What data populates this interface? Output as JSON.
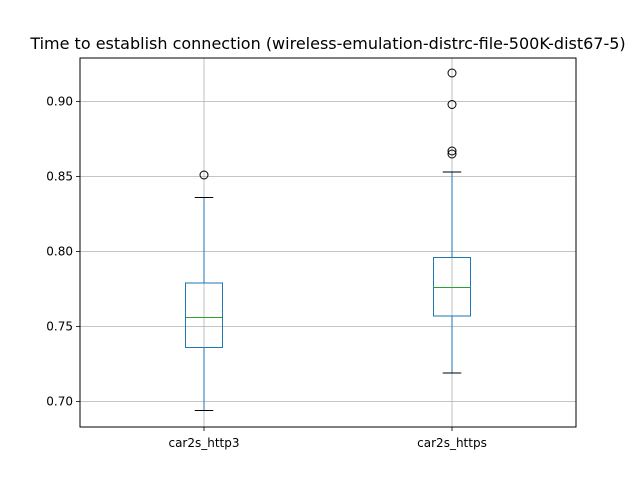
{
  "chart_data": {
    "type": "box",
    "title": "Time to establish connection (wireless-emulation-distrc-file-500K-dist67-5)",
    "xlabel": "",
    "ylabel": "",
    "categories": [
      "car2s_http3",
      "car2s_https"
    ],
    "ylim": [
      0.683,
      0.929
    ],
    "yticks": [
      0.7,
      0.75,
      0.8,
      0.85,
      0.9
    ],
    "ytick_labels": [
      "0.70",
      "0.75",
      "0.80",
      "0.85",
      "0.90"
    ],
    "grid": true,
    "legend": "none",
    "boxes": [
      {
        "category": "car2s_http3",
        "whisker_low": 0.694,
        "q1": 0.736,
        "median": 0.756,
        "q3": 0.779,
        "whisker_high": 0.836,
        "outliers": [
          0.851
        ]
      },
      {
        "category": "car2s_https",
        "whisker_low": 0.719,
        "q1": 0.757,
        "median": 0.776,
        "q3": 0.796,
        "whisker_high": 0.853,
        "outliers": [
          0.865,
          0.867,
          0.898,
          0.919
        ]
      }
    ],
    "colors": {
      "box": "#1f77b4",
      "median": "#2ca02c",
      "grid": "#b0b0b0",
      "axis": "#000000"
    }
  }
}
